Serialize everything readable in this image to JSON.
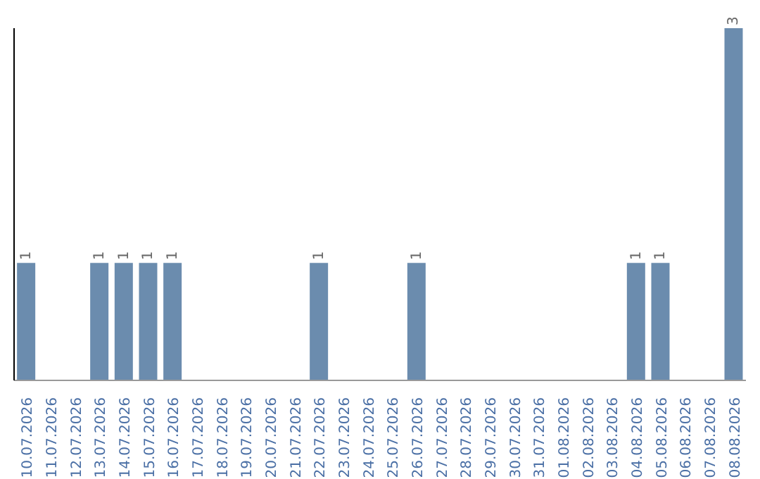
{
  "chart_data": {
    "type": "bar",
    "categories": [
      "10.07.2026",
      "11.07.2026",
      "12.07.2026",
      "13.07.2026",
      "14.07.2026",
      "15.07.2026",
      "16.07.2026",
      "17.07.2026",
      "18.07.2026",
      "19.07.2026",
      "20.07.2026",
      "21.07.2026",
      "22.07.2026",
      "23.07.2026",
      "24.07.2026",
      "25.07.2026",
      "26.07.2026",
      "27.07.2026",
      "28.07.2026",
      "29.07.2026",
      "30.07.2026",
      "31.07.2026",
      "01.08.2026",
      "02.08.2026",
      "03.08.2026",
      "04.08.2026",
      "05.08.2026",
      "06.08.2026",
      "07.08.2026",
      "08.08.2026"
    ],
    "values": [
      1,
      0,
      0,
      1,
      1,
      1,
      1,
      0,
      0,
      0,
      0,
      0,
      1,
      0,
      0,
      0,
      1,
      0,
      0,
      0,
      0,
      0,
      0,
      0,
      0,
      1,
      1,
      0,
      0,
      3
    ],
    "value_labels": [
      "1",
      null,
      null,
      "1",
      "1",
      "1",
      "1",
      null,
      null,
      null,
      null,
      null,
      "1",
      null,
      null,
      null,
      "1",
      null,
      null,
      null,
      null,
      null,
      null,
      null,
      null,
      "1",
      "1",
      null,
      null,
      "3"
    ],
    "color": "#6b8cae",
    "grid": false,
    "legend": false
  }
}
